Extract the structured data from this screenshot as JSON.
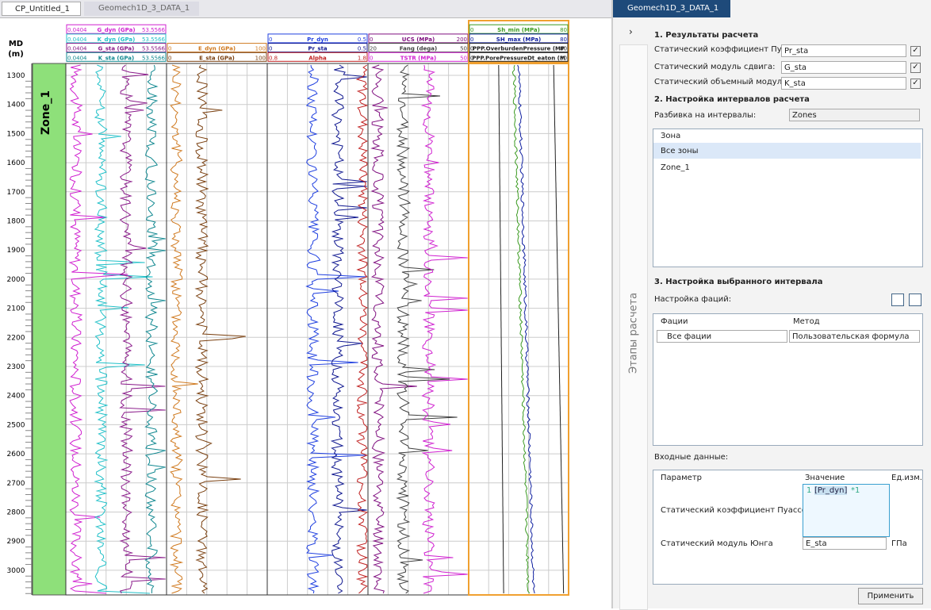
{
  "tabs": [
    "CP_Untitled_1",
    "Geomech1D_3_DATA_1"
  ],
  "depth_axis": {
    "title": "MD",
    "unit": "(m)",
    "ticks": [
      1300,
      1400,
      1500,
      1600,
      1700,
      1800,
      1900,
      2000,
      2100,
      2200,
      2300,
      2400,
      2500,
      2600,
      2700,
      2800,
      2900,
      3000
    ]
  },
  "zone": "Zone_1",
  "tracks": [
    {
      "curves": [
        {
          "min": "0.0404",
          "name": "G_dyn (GPa)",
          "max": "53.5566",
          "color": "#d020d0"
        },
        {
          "min": "0.0404",
          "name": "K_dyn (GPa)",
          "max": "53.5566",
          "color": "#20c0c8"
        },
        {
          "min": "0.0404",
          "name": "G_sta (GPa)",
          "max": "53.5566",
          "color": "#8a1a8a"
        },
        {
          "min": "0.0404",
          "name": "K_sta (GPa)",
          "max": "53.5566",
          "color": "#108890"
        }
      ]
    },
    {
      "curves": [
        {
          "min": "0",
          "name": "E_dyn (GPa)",
          "max": "100",
          "color": "#d07a20"
        },
        {
          "min": "0",
          "name": "E_sta (GPa)",
          "max": "100",
          "color": "#7a4010"
        }
      ]
    },
    {
      "curves": [
        {
          "min": "0",
          "name": "Pr_dyn",
          "max": "0.5",
          "color": "#2040e0"
        },
        {
          "min": "0",
          "name": "Pr_sta",
          "max": "0.5",
          "color": "#101890"
        },
        {
          "min": "0.8",
          "name": "Alpha",
          "max": "1.8",
          "color": "#c02020"
        }
      ]
    },
    {
      "curves": [
        {
          "min": "0",
          "name": "UCS (MPa)",
          "max": "200",
          "color": "#801080"
        },
        {
          "min": "20",
          "name": "Fang (dega)",
          "max": "50",
          "color": "#404040"
        },
        {
          "min": "0",
          "name": "TSTR (MPa)",
          "max": "50",
          "color": "#d020d0"
        }
      ]
    },
    {
      "curves": [
        {
          "min": "0",
          "name": "Sh_min (MPa)",
          "max": "80",
          "color": "#3a9a20"
        },
        {
          "min": "0",
          "name": "SH_max (MPa)",
          "max": "80",
          "color": "#1020a0"
        },
        {
          "min": "0",
          "name": "PPP.OverburdenPressure (MP",
          "max": "80",
          "color": "#202020"
        },
        {
          "min": "0",
          "name": "PPP.PorePressureDt_eaton (M",
          "max": "80",
          "color": "#202020"
        }
      ]
    }
  ],
  "panel": {
    "tab": "Geomech1D_3_DATA_1",
    "side_label": "Этапы расчета",
    "section1": {
      "title": "1.  Результаты расчета",
      "rows": [
        {
          "label": "Статический коэффициент Пуассона",
          "value": "Pr_sta"
        },
        {
          "label": "Статический модуль сдвига:",
          "value": "G_sta"
        },
        {
          "label": "Статический объемный модуль:",
          "value": "K_sta"
        }
      ]
    },
    "section2": {
      "title": "2. Настройка интервалов расчета",
      "split_label": "Разбивка на интервалы:",
      "split_value": "Zones",
      "list_header": "Зона",
      "items": [
        "Все зоны",
        "Zone_1"
      ]
    },
    "section3": {
      "title": "3. Настройка выбранного интервала",
      "facies_label": "Настройка фаций:",
      "facies_headers": [
        "Фации",
        "Метод"
      ],
      "facies_row": [
        "Все фации",
        "Пользовательская формула"
      ],
      "inputs_label": "Входные данные:",
      "inputs_headers": [
        "Параметр",
        "Значение",
        "Ед.изм."
      ],
      "inputs": [
        {
          "param": "Статический коэффициент Пуассона",
          "line": "1",
          "formula": "[Pr_dyn]",
          "suffix": "*1"
        },
        {
          "param": "Статический модуль Юнга",
          "value": "E_sta",
          "unit": "ГПа"
        }
      ]
    },
    "apply": "Применить"
  }
}
